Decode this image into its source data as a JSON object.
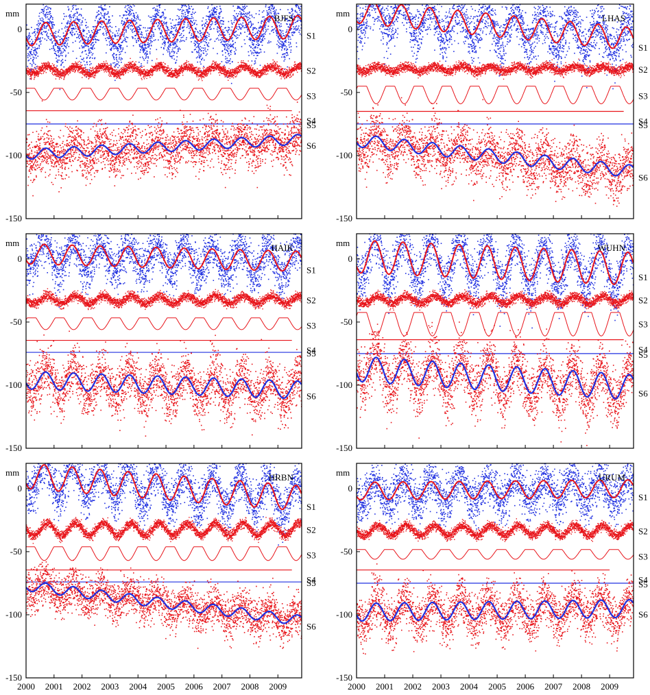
{
  "chart_data": {
    "type": "scatter",
    "description_units": "mm",
    "x": {
      "min": 2000,
      "max": 2009.85,
      "ticks": [
        "2000",
        "2001",
        "2002",
        "2003",
        "2004",
        "2005",
        "2006",
        "2007",
        "2008",
        "2009"
      ]
    },
    "y": {
      "min": -150,
      "max": 20,
      "ticks": [
        0,
        -50,
        -100,
        -150
      ],
      "tick_labels": [
        "0",
        "-50",
        "-100",
        "-150"
      ],
      "unit": "mm"
    },
    "series_labels": [
      "S1",
      "S2",
      "S3",
      "S4",
      "S5",
      "S6"
    ],
    "colors": {
      "blue": "#1f2fe0",
      "red": "#e8141a",
      "frame": "#000000"
    },
    "panels": [
      {
        "station": "BJFS",
        "unit": "mm",
        "S1": {
          "amp": 9,
          "phase": 0.45,
          "trend": 0.6,
          "noise": 9,
          "offset": -4
        },
        "S2": {
          "amp": 3,
          "phase": 0.5,
          "offset": -32
        },
        "S3": {
          "amp": 6,
          "phase": 0.4,
          "offset": -50
        },
        "S4": {
          "offset": -64.5,
          "end": 2009.5
        },
        "S5": {
          "offset": -75
        },
        "S6": {
          "amp": 4,
          "phase": 0.45,
          "trend": 1.2,
          "noise": 9,
          "offset": -99
        }
      },
      {
        "station": "LHAS",
        "unit": "mm",
        "S1": {
          "amp": 9,
          "phase": 0.35,
          "trend": -2.2,
          "noise": 10,
          "offset": 14
        },
        "S2": {
          "amp": 2,
          "phase": 0.5,
          "offset": -31
        },
        "S3": {
          "amp": 9,
          "phase": 0.45,
          "offset": -50
        },
        "S4": {
          "offset": -65,
          "end": 2009.5
        },
        "S5": {
          "offset": -75
        },
        "S6": {
          "amp": 5,
          "phase": 0.45,
          "trend": -2.5,
          "noise": 10,
          "offset": -88
        }
      },
      {
        "station": "HAIK",
        "unit": "mm",
        "S1": {
          "amp": 8,
          "phase": 0.4,
          "trend": -0.6,
          "noise": 9,
          "offset": 4
        },
        "S2": {
          "amp": 3,
          "phase": 0.5,
          "offset": -32
        },
        "S3": {
          "amp": 6,
          "phase": 0.45,
          "offset": -50
        },
        "S4": {
          "offset": -64.5,
          "end": 2009.5
        },
        "S5": {
          "offset": -74
        },
        "S6": {
          "amp": 7,
          "phase": 0.45,
          "trend": -0.8,
          "noise": 10,
          "offset": -96
        }
      },
      {
        "station": "WUHN",
        "unit": "mm",
        "S1": {
          "amp": 13,
          "phase": 0.4,
          "trend": -1.0,
          "noise": 10,
          "offset": 2
        },
        "S2": {
          "amp": 3,
          "phase": 0.5,
          "offset": -32
        },
        "S3": {
          "amp": 12,
          "phase": 0.45,
          "offset": -49
        },
        "S4": {
          "offset": -64,
          "end": 2009.5
        },
        "S5": {
          "offset": -75
        },
        "S6": {
          "amp": 10,
          "phase": 0.45,
          "trend": -1.5,
          "noise": 11,
          "offset": -87
        }
      },
      {
        "station": "HRBN",
        "unit": "mm",
        "S1": {
          "amp": 10,
          "phase": 0.4,
          "trend": -1.8,
          "noise": 9,
          "offset": 10
        },
        "S2": {
          "amp": 5,
          "phase": 0.5,
          "offset": -32
        },
        "S3": {
          "amp": 7,
          "phase": 0.4,
          "offset": -50
        },
        "S4": {
          "offset": -64.5,
          "end": 2009.5
        },
        "S5": {
          "offset": -74
        },
        "S6": {
          "amp": 4,
          "phase": 0.45,
          "trend": -2.8,
          "noise": 8,
          "offset": -77
        }
      },
      {
        "station": "URUM",
        "unit": "mm",
        "S1": {
          "amp": 7,
          "phase": 0.4,
          "trend": 0.2,
          "noise": 9,
          "offset": -2
        },
        "S2": {
          "amp": 4,
          "phase": 0.5,
          "offset": -33
        },
        "S3": {
          "amp": 5,
          "phase": 0.4,
          "offset": -51
        },
        "S4": {
          "offset": -64.5,
          "end": 2009.0
        },
        "S5": {
          "offset": -75
        },
        "S6": {
          "amp": 7,
          "phase": 0.45,
          "trend": 0.3,
          "noise": 9,
          "offset": -98
        }
      }
    ]
  }
}
